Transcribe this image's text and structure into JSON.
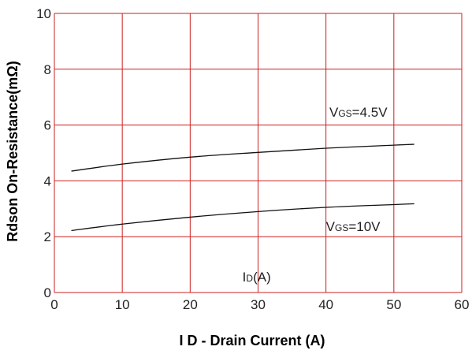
{
  "chart_data": {
    "type": "line",
    "xlabel": "I D - Drain Current (A)",
    "ylabel": "Rdson On-Resistance(mΩ)",
    "xlim": [
      0,
      60
    ],
    "ylim": [
      0,
      10
    ],
    "xticks": [
      "0",
      "10",
      "20",
      "30",
      "40",
      "50",
      "60"
    ],
    "yticks": [
      "0",
      "2",
      "4",
      "6",
      "8",
      "10"
    ],
    "grid": true,
    "grid_color": "#cc1f1f",
    "line_color": "#111111",
    "series": [
      {
        "name": "VGS=4.5V",
        "x": [
          2.5,
          10,
          20,
          30,
          40,
          50,
          53
        ],
        "y": [
          4.35,
          4.6,
          4.85,
          5.02,
          5.17,
          5.28,
          5.31
        ]
      },
      {
        "name": "VGS=10V",
        "x": [
          2.5,
          10,
          20,
          30,
          40,
          50,
          53
        ],
        "y": [
          2.22,
          2.45,
          2.7,
          2.9,
          3.05,
          3.15,
          3.18
        ]
      }
    ],
    "annotations": [
      {
        "main": "V",
        "sub": "GS",
        "rest": "=4.5V",
        "x": 40.5,
        "y": 6.3
      },
      {
        "main": "V",
        "sub": "GS",
        "rest": "=10V",
        "x": 40,
        "y": 2.2
      },
      {
        "main": "I",
        "sub": "D",
        "rest": "(A)",
        "x": 27.7,
        "y": 0.4
      }
    ]
  }
}
